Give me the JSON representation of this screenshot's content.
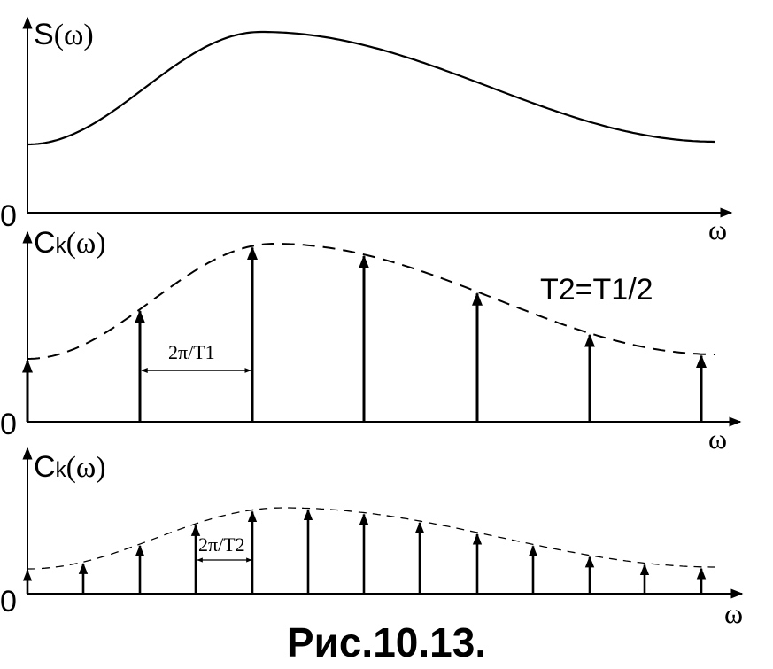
{
  "panels": [
    {
      "id": "continuous",
      "ylabel": "S(ω)",
      "xlabel": "ω",
      "origin": "0"
    },
    {
      "id": "period-t1",
      "ylabel": "Ck(ω)",
      "xlabel": "ω",
      "origin": "0",
      "note": "T2=T1/2",
      "spacing_label": "2π/T1"
    },
    {
      "id": "period-t2",
      "ylabel": "Ck(ω)",
      "xlabel": "ω",
      "origin": "0",
      "spacing_label": "2π/T2"
    }
  ],
  "caption": "Рис.10.13."
}
